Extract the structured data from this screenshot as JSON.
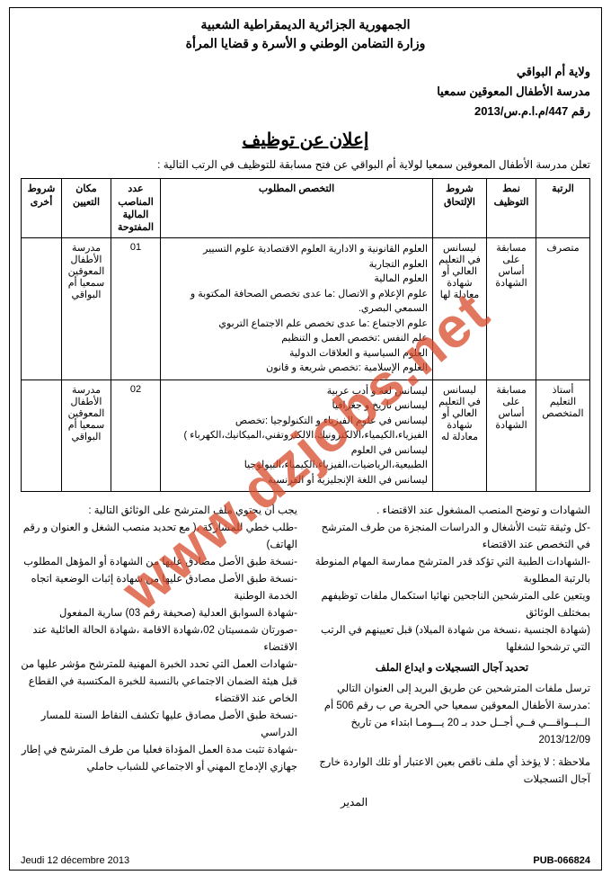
{
  "header": {
    "line1": "الجمهورية الجزائرية الديمقراطية الشعبية",
    "line2": "وزارة التضامن الوطني و الأسرة و قضايا المرأة"
  },
  "meta": {
    "wilaya": "ولاية أم البواقي",
    "school": "مدرسة الأطفال المعوقين سمعيا",
    "ref": "رقم 447/م.ا.م.س/2013"
  },
  "title": "إعلان عن توظيف",
  "intro": "تعلن مدرسة الأطفال المعوقين سمعيا لولاية أم البواقي عن فتح مسابقة للتوظيف في الرتب التالية :",
  "table": {
    "headers": {
      "rutba": "الرتبة",
      "namat": "نمط التوظيف",
      "shurut": "شروط الإلتحاق",
      "spec": "التخصص المطلوب",
      "adad": "عدد المناصب المالية المفتوحة",
      "makan": "مكان التعيين",
      "other": "شروط أخرى"
    },
    "rows": [
      {
        "rutba": "متصرف",
        "namat": "مسابقة على أساس الشهادة",
        "shurut": "ليسانس في التعليم العالي أو شهادة معادلة لها",
        "spec": "العلوم القانونية و الادارية العلوم الاقتصادية علوم التسيير\nالعلوم التجارية\nالعلوم المالية\nعلوم الإعلام و الاتصال :ما عدى تخصص الصحافة المكتوبة و السمعي البصري.\nعلوم الاجتماع :ما عدى تخصص علم الاجتماع التربوي\nعلم النفس :تخصص العمل و التنظيم\nالعلوم السياسية و العلاقات الدولية\nالعلوم الإسلامية :تخصص شريعة و قانون",
        "adad": "01",
        "makan": "مدرسة الأطفال المعوقين سمعيا أم البواقي",
        "other": ""
      },
      {
        "rutba": "أستاذ التعليم المتخصص",
        "namat": "مسابقة على أساس الشهادة",
        "shurut": "ليسانس في التعليم العالي أو شهادة معادلة له",
        "spec": "ليسانس لغة و أدب عربية\nليسانس تاريخ و جغرافيا\nليسانس في علوم الفيزياء و التكنولوجيا :تخصص الفيزياء،الكيمياء،الالكترونيك،الالكتروتقني،الميكانيك،الكهرباء )\nليسانس في العلوم الطبيعية،الرياضيات،الفيزياء،الكيمياء،البيولوجيا\nليسانس في اللغة الإنجليزية أو الفرنسية",
        "adad": "02",
        "makan": "مدرسة الأطفال المعوقين سمعيا أم البواقي",
        "other": ""
      }
    ]
  },
  "docs_title": "يجب أن يحتوي ملف المترشح على الوثائق التالية :",
  "docs_right": [
    "-طلب خطي للمشاركة ،( مع تحديد منصب الشغل و العنوان و رقم الهاتف)",
    "-نسخة طبق الأصل مصادق عليها من الشهادة أو المؤهل المطلوب",
    "-نسخة طبق الأصل مصادق عليها من شهادة إثبات الوضعية اتجاه الخدمة الوطنية",
    "-شهادة السوابق العدلية (صحيفة رقم 03) سارية المفعول",
    "-صورتان شمسيتان 02،شهادة الاقامة ،شهادة الحالة العائلية عند الاقتضاء",
    "-شهادات العمل التي تحدد الخبرة المهنية للمترشح مؤشر عليها من قبل هيئة الضمان الاجتماعي بالنسبة للخبرة المكتسبة في القطاع الخاص عند الاقتضاء",
    "-نسخة طبق الأصل مصادق عليها تكشف النقاط السنة للمسار الدراسي",
    "-شهادة تثبت مدة العمل المؤداة فعليا من طرف المترشح في إطار جهازي الإدماج المهني أو الاجتماعي للشباب حاملي"
  ],
  "docs_left": [
    "الشهادات و توضح المنصب المشغول عند الاقتضاء .",
    "-كل وثيقة تثبت الأشغال و الدراسات المنجزة من طرف المترشح في التخصص عند الاقتضاء",
    "-الشهادات الطبية التي تؤكد قدر المترشح ممارسة المهام المنوطة بالرتبة المطلوبة",
    "ويتعين على المترشحين الناجحين نهائيا استكمال ملفات توظيفهم بمختلف الوثائق",
    "(شهادة الجنسية ،نسخة من شهادة الميلاد) قبل تعيينهم في الرتب التي ترشحوا لشغلها"
  ],
  "deadline_title": "تحديد آجال التسجيلات و ايداع الملف",
  "send_to": "ترسل ملفات المترشحين عن طريق البريد إلى العنوان التالي :مدرسة الأطفال المعوقين سمعيا حي الحرية ص ب رقم 506 أم الــبــواقـــي فــي أجــل حدد بـ 20 يـــومـا ابتداء من تاريخ 2013/12/09",
  "note": "ملاحظة : لا يؤخذ أي ملف ناقص بعين الاعتبار أو تلك الواردة خارج آجال التسجيلات",
  "signature": "المدير",
  "footer": {
    "date": "Jeudi 12 décembre 2013",
    "pub": "PUB-066824"
  },
  "watermark": "www.dzjobs.net",
  "colors": {
    "text": "#000000",
    "bg": "#ffffff",
    "watermark": "#d94a2c"
  }
}
